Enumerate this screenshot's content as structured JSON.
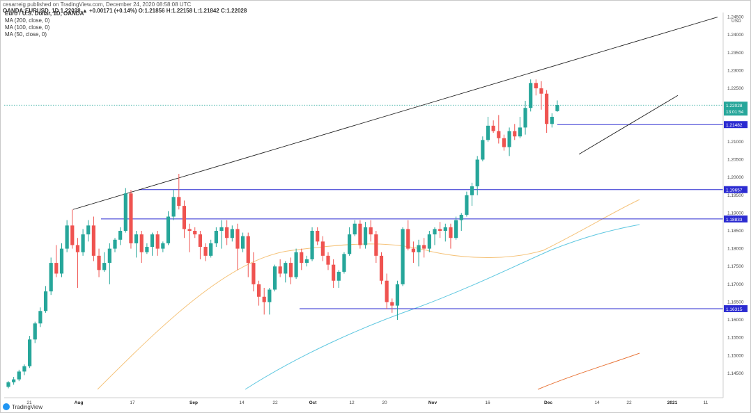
{
  "header": {
    "publisher": "cesarreig published on TradingView.com, December 24, 2020 08:58:08 UTC",
    "ohlc_line": "OANDA:EURUSD, 1D 1.22028 ▲ +0.00171 (+0.14%) O:1.21856 H:1.22158 L:1.21842 C:1.22028"
  },
  "legend": {
    "symbol": "Euro / U.S. Dollar, 1D, OANDA",
    "ma200": "MA (200, close, 0)",
    "ma100": "MA (100, close, 0)",
    "ma50": "MA (50, close, 0)"
  },
  "footer": {
    "brand": "TradingView"
  },
  "colors": {
    "up": "#26a69a",
    "down": "#ef5350",
    "ma50": "#f5c37a",
    "ma100": "#5ec7e0",
    "ma200": "#e8763a",
    "level": "#2b2bd1",
    "trend": "#222222",
    "last_price_bg": "#26a69a"
  },
  "chart_data": {
    "type": "candlestick",
    "symbol": "EURUSD",
    "timeframe": "1D",
    "currency": "USD",
    "ylim": [
      1.1405,
      1.2455
    ],
    "y_ticks": [
      "1.24500",
      "1.24000",
      "1.23500",
      "1.23000",
      "1.22500",
      "1.21500",
      "1.21000",
      "1.20500",
      "1.20000",
      "1.19500",
      "1.19000",
      "1.18500",
      "1.18000",
      "1.17500",
      "1.17000",
      "1.16500",
      "1.16000",
      "1.15500",
      "1.15000",
      "1.14500"
    ],
    "x_ticks": [
      "21",
      "Aug",
      "17",
      "Sep",
      "14",
      "22",
      "Oct",
      "12",
      "20",
      "Nov",
      "16",
      "Dec",
      "14",
      "22",
      "2021",
      "11"
    ],
    "candles": [
      [
        1.1412,
        1.1428,
        1.1408,
        1.1425
      ],
      [
        1.1425,
        1.144,
        1.1418,
        1.1433
      ],
      [
        1.1433,
        1.146,
        1.1428,
        1.1455
      ],
      [
        1.1455,
        1.1475,
        1.1445,
        1.147
      ],
      [
        1.147,
        1.1555,
        1.1465,
        1.1545
      ],
      [
        1.1545,
        1.1595,
        1.1535,
        1.159
      ],
      [
        1.159,
        1.1635,
        1.158,
        1.1625
      ],
      [
        1.1625,
        1.1695,
        1.162,
        1.168
      ],
      [
        1.168,
        1.1775,
        1.167,
        1.176
      ],
      [
        1.176,
        1.181,
        1.172,
        1.173
      ],
      [
        1.173,
        1.1815,
        1.172,
        1.18
      ],
      [
        1.18,
        1.188,
        1.179,
        1.1865
      ],
      [
        1.1865,
        1.191,
        1.18,
        1.181
      ],
      [
        1.181,
        1.183,
        1.169,
        1.179
      ],
      [
        1.179,
        1.1855,
        1.178,
        1.184
      ],
      [
        1.184,
        1.188,
        1.182,
        1.1865
      ],
      [
        1.1865,
        1.189,
        1.1765,
        1.178
      ],
      [
        1.178,
        1.18,
        1.172,
        1.174
      ],
      [
        1.174,
        1.179,
        1.1735,
        1.176
      ],
      [
        1.176,
        1.1815,
        1.17,
        1.18
      ],
      [
        1.18,
        1.183,
        1.179,
        1.1825
      ],
      [
        1.1825,
        1.186,
        1.181,
        1.185
      ],
      [
        1.185,
        1.197,
        1.1845,
        1.1955
      ],
      [
        1.1955,
        1.1965,
        1.18,
        1.1815
      ],
      [
        1.1815,
        1.185,
        1.1775,
        1.184
      ],
      [
        1.184,
        1.185,
        1.176,
        1.179
      ],
      [
        1.179,
        1.1815,
        1.1785,
        1.1805
      ],
      [
        1.1805,
        1.1845,
        1.178,
        1.184
      ],
      [
        1.184,
        1.185,
        1.178,
        1.18
      ],
      [
        1.18,
        1.182,
        1.179,
        1.1815
      ],
      [
        1.1815,
        1.1905,
        1.181,
        1.189
      ],
      [
        1.189,
        1.1965,
        1.188,
        1.1945
      ],
      [
        1.1945,
        1.201,
        1.191,
        1.192
      ],
      [
        1.192,
        1.1935,
        1.183,
        1.1855
      ],
      [
        1.1855,
        1.187,
        1.179,
        1.185
      ],
      [
        1.185,
        1.186,
        1.183,
        1.184
      ],
      [
        1.184,
        1.185,
        1.177,
        1.1805
      ],
      [
        1.1805,
        1.1815,
        1.1765,
        1.178
      ],
      [
        1.178,
        1.1825,
        1.1775,
        1.1815
      ],
      [
        1.1815,
        1.186,
        1.1805,
        1.185
      ],
      [
        1.185,
        1.188,
        1.18,
        1.186
      ],
      [
        1.186,
        1.188,
        1.181,
        1.183
      ],
      [
        1.183,
        1.1865,
        1.182,
        1.1855
      ],
      [
        1.1855,
        1.187,
        1.174,
        1.18
      ],
      [
        1.18,
        1.1845,
        1.179,
        1.1835
      ],
      [
        1.1835,
        1.1845,
        1.172,
        1.176
      ],
      [
        1.176,
        1.179,
        1.168,
        1.17
      ],
      [
        1.17,
        1.171,
        1.164,
        1.1665
      ],
      [
        1.1665,
        1.169,
        1.1615,
        1.165
      ],
      [
        1.165,
        1.169,
        1.1615,
        1.1685
      ],
      [
        1.1685,
        1.1755,
        1.168,
        1.175
      ],
      [
        1.175,
        1.177,
        1.172,
        1.173
      ],
      [
        1.173,
        1.1765,
        1.1705,
        1.176
      ],
      [
        1.176,
        1.1775,
        1.17,
        1.172
      ],
      [
        1.172,
        1.18,
        1.1715,
        1.179
      ],
      [
        1.179,
        1.18,
        1.174,
        1.176
      ],
      [
        1.176,
        1.178,
        1.175,
        1.177
      ],
      [
        1.177,
        1.186,
        1.1765,
        1.185
      ],
      [
        1.185,
        1.186,
        1.181,
        1.182
      ],
      [
        1.182,
        1.1835,
        1.1765,
        1.178
      ],
      [
        1.178,
        1.179,
        1.174,
        1.1755
      ],
      [
        1.1755,
        1.177,
        1.169,
        1.171
      ],
      [
        1.171,
        1.174,
        1.169,
        1.1735
      ],
      [
        1.1735,
        1.179,
        1.173,
        1.1785
      ],
      [
        1.1785,
        1.186,
        1.178,
        1.184
      ],
      [
        1.184,
        1.188,
        1.1835,
        1.187
      ],
      [
        1.187,
        1.188,
        1.18,
        1.181
      ],
      [
        1.181,
        1.1875,
        1.18,
        1.186
      ],
      [
        1.186,
        1.188,
        1.182,
        1.184
      ],
      [
        1.184,
        1.185,
        1.176,
        1.178
      ],
      [
        1.178,
        1.179,
        1.17,
        1.171
      ],
      [
        1.171,
        1.173,
        1.163,
        1.165
      ],
      [
        1.165,
        1.166,
        1.162,
        1.164
      ],
      [
        1.164,
        1.171,
        1.16,
        1.17
      ],
      [
        1.17,
        1.186,
        1.1695,
        1.1855
      ],
      [
        1.1855,
        1.188,
        1.1795,
        1.18
      ],
      [
        1.18,
        1.182,
        1.176,
        1.179
      ],
      [
        1.179,
        1.1825,
        1.175,
        1.181
      ],
      [
        1.181,
        1.183,
        1.1775,
        1.18
      ],
      [
        1.18,
        1.185,
        1.179,
        1.184
      ],
      [
        1.184,
        1.186,
        1.181,
        1.1855
      ],
      [
        1.1855,
        1.1875,
        1.183,
        1.185
      ],
      [
        1.185,
        1.187,
        1.182,
        1.186
      ],
      [
        1.186,
        1.187,
        1.18,
        1.183
      ],
      [
        1.183,
        1.189,
        1.1825,
        1.188
      ],
      [
        1.188,
        1.19,
        1.185,
        1.1895
      ],
      [
        1.1895,
        1.196,
        1.189,
        1.195
      ],
      [
        1.195,
        1.1985,
        1.192,
        1.1975
      ],
      [
        1.1975,
        1.206,
        1.195,
        1.205
      ],
      [
        1.205,
        1.2115,
        1.2045,
        1.2105
      ],
      [
        1.2105,
        1.217,
        1.21,
        1.2145
      ],
      [
        1.2145,
        1.216,
        1.2125,
        1.213
      ],
      [
        1.213,
        1.2175,
        1.2095,
        1.211
      ],
      [
        1.211,
        1.212,
        1.2075,
        1.2085
      ],
      [
        1.2085,
        1.214,
        1.206,
        1.213
      ],
      [
        1.213,
        1.215,
        1.2105,
        1.2115
      ],
      [
        1.2115,
        1.217,
        1.211,
        1.214
      ],
      [
        1.214,
        1.2215,
        1.212,
        1.2195
      ],
      [
        1.2195,
        1.2275,
        1.2185,
        1.2265
      ],
      [
        1.2265,
        1.2275,
        1.223,
        1.225
      ],
      [
        1.225,
        1.227,
        1.219,
        1.2235
      ],
      [
        1.2235,
        1.2245,
        1.2125,
        1.215
      ],
      [
        1.215,
        1.218,
        1.214,
        1.217
      ],
      [
        1.2186,
        1.2216,
        1.2184,
        1.2203
      ]
    ],
    "ma50": [
      [
        1.1732,
        1.174,
        1.1745,
        1.178,
        1.18,
        1.1808,
        1.1795,
        1.1785,
        1.1805,
        1.183,
        1.1855,
        1.1895,
        1.1935
      ]
    ],
    "horizontal_levels": [
      {
        "price": 1.21482,
        "label": "1.21482"
      },
      {
        "price": 1.19657,
        "label": "1.19657"
      },
      {
        "price": 1.18833,
        "label": "1.18833"
      },
      {
        "price": 1.16315,
        "label": "1.16315"
      }
    ],
    "last_price": {
      "price": 1.22028,
      "label": "1.22028",
      "countdown": "13:01:54"
    }
  }
}
